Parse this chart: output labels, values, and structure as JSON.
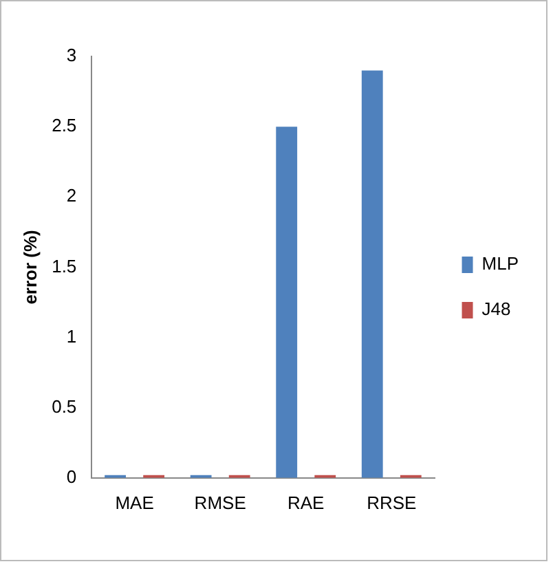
{
  "chart_data": {
    "type": "bar",
    "ylabel": "error (%)",
    "categories": [
      "MAE",
      "RMSE",
      "RAE",
      "RRSE"
    ],
    "series": [
      {
        "name": "MLP",
        "color": "#4f81bd",
        "values": [
          0.02,
          0.02,
          2.5,
          2.9
        ]
      },
      {
        "name": "J48",
        "color": "#c0504d",
        "values": [
          0.02,
          0.02,
          0.02,
          0.02
        ]
      }
    ],
    "ylim": [
      0,
      3
    ],
    "yticks": [
      0,
      0.5,
      1,
      1.5,
      2,
      2.5,
      3
    ],
    "grid": false,
    "legend": "right"
  }
}
